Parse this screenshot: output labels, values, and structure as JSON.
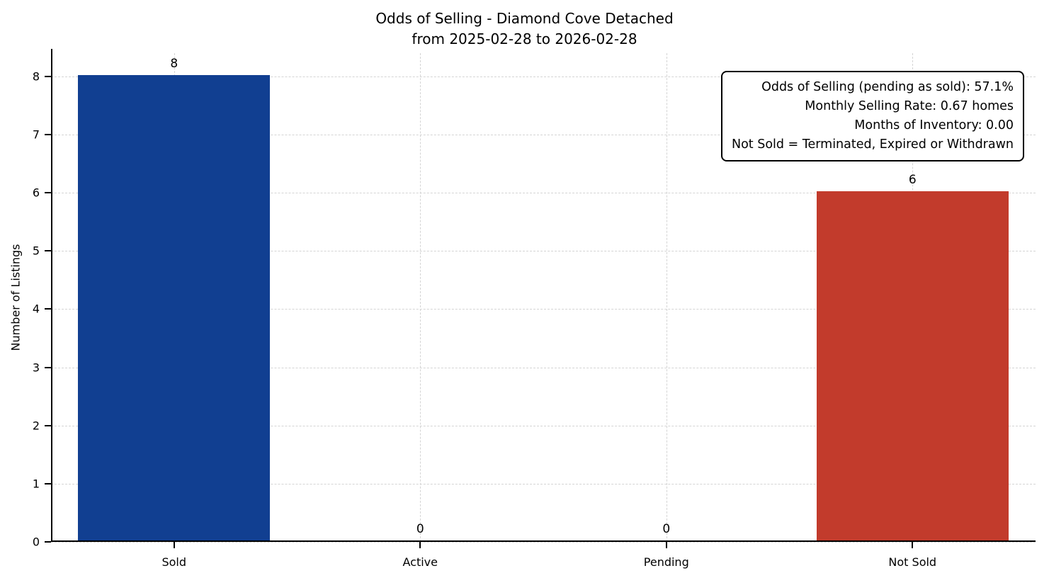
{
  "chart_data": {
    "type": "bar",
    "title": "Odds of Selling - Diamond Cove Detached",
    "subtitle": "from 2025-02-28 to 2026-02-28",
    "ylabel": "Number of Listings",
    "categories": [
      "Sold",
      "Active",
      "Pending",
      "Not Sold"
    ],
    "values": [
      8,
      0,
      0,
      6
    ],
    "bar_colors": [
      "#113f91",
      "#7f7f7f",
      "#7f7f7f",
      "#c23b2c"
    ],
    "ylim": [
      0,
      8.4
    ],
    "yticks": [
      0,
      1,
      2,
      3,
      4,
      5,
      6,
      7,
      8
    ],
    "grid": true,
    "legend": null,
    "annotation": {
      "lines": [
        "Odds of Selling (pending as sold): 57.1%",
        "Monthly Selling Rate: 0.67 homes",
        "Months of Inventory: 0.00",
        "Not Sold = Terminated, Expired or Withdrawn"
      ]
    }
  }
}
